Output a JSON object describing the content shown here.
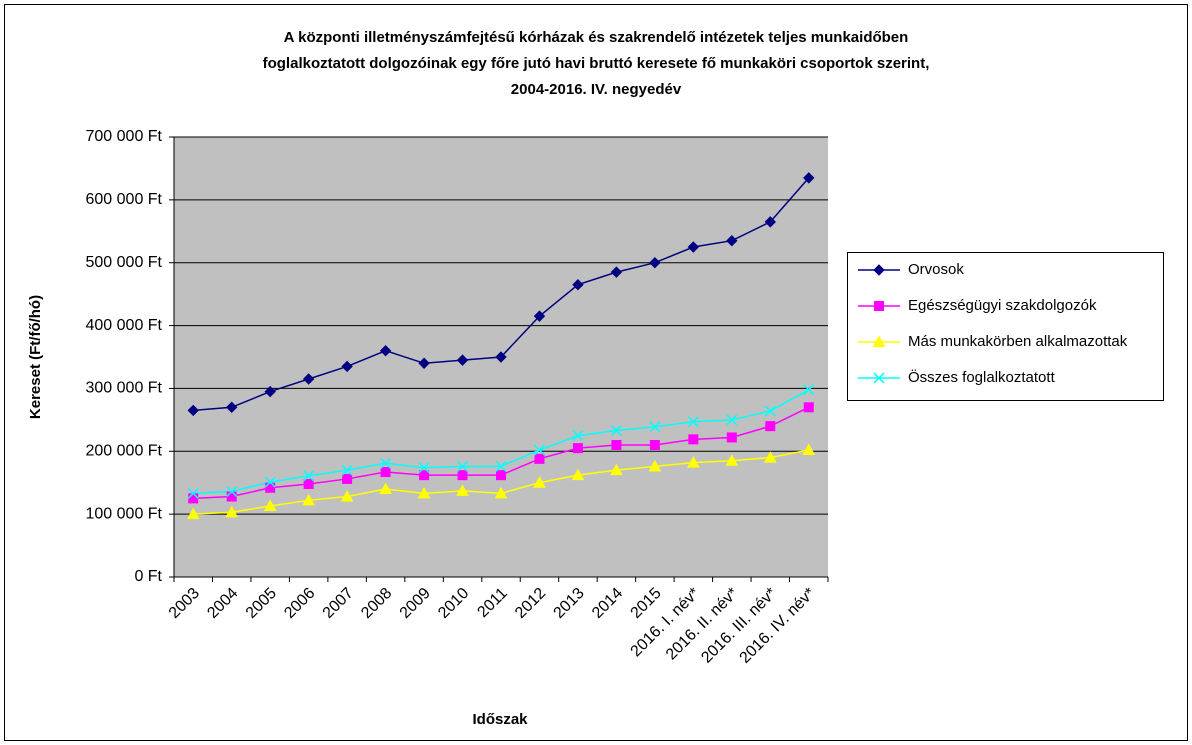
{
  "chart_data": {
    "type": "line",
    "title": [
      "A központi illetményszámfejtésű kórházak és szakrendelő intézetek teljes munkaidőben",
      "foglalkoztatott dolgozóinak egy főre jutó havi bruttó keresete fő munkaköri csoportok szerint,",
      "2004-2016. IV. negyedév"
    ],
    "x_label": "Időszak",
    "y_label": "Kereset (Ft/fő/hó)",
    "categories": [
      "2003",
      "2004",
      "2005",
      "2006",
      "2007",
      "2008",
      "2009",
      "2010",
      "2011",
      "2012",
      "2013",
      "2014",
      "2015",
      "2016. I. név*",
      "2016. II. név*",
      "2016. III. név*",
      "2016. IV. név*"
    ],
    "series": [
      {
        "name": "Orvosok",
        "color": "#000080",
        "marker": "diamond",
        "values": [
          265000,
          270000,
          295000,
          315000,
          335000,
          360000,
          340000,
          345000,
          350000,
          415000,
          465000,
          485000,
          500000,
          525000,
          535000,
          565000,
          635000
        ]
      },
      {
        "name": "Egészségügyi szakdolgozók",
        "color": "#ff00ff",
        "marker": "square",
        "values": [
          125000,
          128000,
          142000,
          148000,
          156000,
          167000,
          162000,
          162000,
          162000,
          188000,
          205000,
          210000,
          210000,
          219000,
          222000,
          240000,
          270000
        ]
      },
      {
        "name": "Más munkakörben alkalmazottak",
        "color": "#ffff00",
        "marker": "triangle",
        "values": [
          100000,
          103000,
          113000,
          122000,
          128000,
          140000,
          133000,
          137000,
          133000,
          150000,
          162000,
          170000,
          176000,
          182000,
          185000,
          190000,
          202000
        ]
      },
      {
        "name": "Összes foglalkoztatott",
        "color": "#00ffff",
        "marker": "x",
        "values": [
          133000,
          136000,
          151000,
          161000,
          170000,
          181000,
          174000,
          176000,
          176000,
          202000,
          225000,
          233000,
          239000,
          247000,
          250000,
          264000,
          298000
        ]
      }
    ],
    "ylim": [
      0,
      700000
    ],
    "yticks": [
      {
        "value": 0,
        "label": "0 Ft"
      },
      {
        "value": 100000,
        "label": "100 000 Ft"
      },
      {
        "value": 200000,
        "label": "200 000 Ft"
      },
      {
        "value": 300000,
        "label": "300 000 Ft"
      },
      {
        "value": 400000,
        "label": "400 000 Ft"
      },
      {
        "value": 500000,
        "label": "500 000 Ft"
      },
      {
        "value": 600000,
        "label": "600 000 Ft"
      },
      {
        "value": 700000,
        "label": "700 000 Ft"
      }
    ],
    "grid": true,
    "legend": "right",
    "plot_background": "#c0c0c0"
  }
}
